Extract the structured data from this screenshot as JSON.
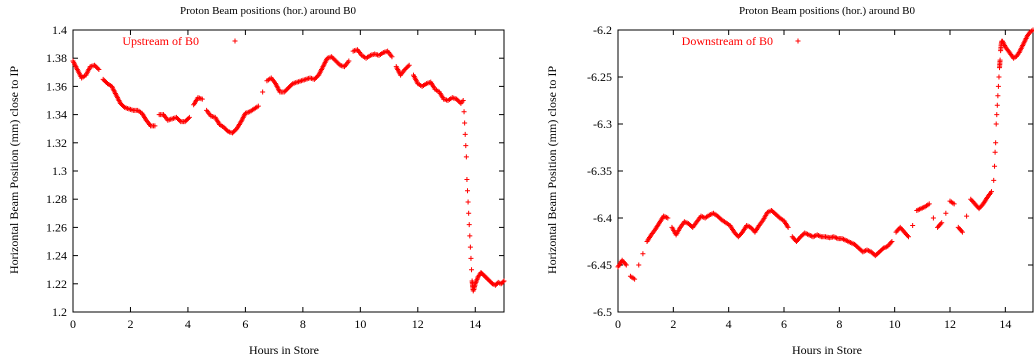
{
  "chart_data": [
    {
      "type": "scatter",
      "title": "Proton Beam positions (hor.) around B0",
      "xlabel": "Hours in Store",
      "ylabel": "Horizontal Beam Position (mm) close to IP",
      "xlim": [
        0,
        15
      ],
      "ylim": [
        1.2,
        1.4
      ],
      "xticks": [
        "0",
        "2",
        "4",
        "6",
        "8",
        "10",
        "12",
        "14"
      ],
      "yticks": [
        "1.2",
        "1.22",
        "1.24",
        "1.26",
        "1.28",
        "1.3",
        "1.32",
        "1.34",
        "1.36",
        "1.38",
        "1.4"
      ],
      "grid": false,
      "legend_position": "top-left",
      "color": "#ff0000",
      "series": [
        {
          "name": "Upstream of B0",
          "x": [
            0,
            0.15,
            0.3,
            0.45,
            0.6,
            0.75,
            0.9,
            1.05,
            1.2,
            1.35,
            1.5,
            1.65,
            1.8,
            1.95,
            2.1,
            2.25,
            2.4,
            2.55,
            2.7,
            2.85,
            3.0,
            3.15,
            3.3,
            3.45,
            3.6,
            3.75,
            3.9,
            4.05,
            4.2,
            4.35,
            4.5,
            4.65,
            4.8,
            4.95,
            5.1,
            5.25,
            5.4,
            5.55,
            5.7,
            5.85,
            6.0,
            6.15,
            6.3,
            6.45,
            6.6,
            6.75,
            6.9,
            7.05,
            7.2,
            7.35,
            7.5,
            7.65,
            7.8,
            7.95,
            8.1,
            8.25,
            8.4,
            8.55,
            8.7,
            8.85,
            9.0,
            9.15,
            9.3,
            9.45,
            9.6,
            9.75,
            9.9,
            10.05,
            10.2,
            10.35,
            10.5,
            10.65,
            10.8,
            10.95,
            11.1,
            11.25,
            11.4,
            11.55,
            11.7,
            11.85,
            12.0,
            12.15,
            12.3,
            12.45,
            12.6,
            12.75,
            12.9,
            13.05,
            13.2,
            13.35,
            13.5,
            13.58,
            13.61,
            13.63,
            13.65,
            13.67,
            13.69,
            13.71,
            13.73,
            13.75,
            13.77,
            13.79,
            13.81,
            13.83,
            13.85,
            13.87,
            13.89,
            13.91,
            13.93,
            13.95,
            14.0,
            14.1,
            14.2,
            14.3,
            14.4,
            14.5,
            14.6,
            14.7,
            14.8,
            14.9,
            15.0
          ],
          "y": [
            1.378,
            1.372,
            1.366,
            1.368,
            1.374,
            1.375,
            1.372,
            1.365,
            1.362,
            1.36,
            1.354,
            1.348,
            1.345,
            1.344,
            1.343,
            1.343,
            1.341,
            1.336,
            1.332,
            1.332,
            1.34,
            1.34,
            1.336,
            1.337,
            1.338,
            1.335,
            1.335,
            1.338,
            1.347,
            1.352,
            1.351,
            1.343,
            1.339,
            1.338,
            1.333,
            1.331,
            1.328,
            1.327,
            1.33,
            1.335,
            1.341,
            1.342,
            1.344,
            1.346,
            1.356,
            1.364,
            1.366,
            1.362,
            1.356,
            1.356,
            1.359,
            1.362,
            1.363,
            1.364,
            1.365,
            1.366,
            1.365,
            1.368,
            1.374,
            1.38,
            1.381,
            1.378,
            1.375,
            1.374,
            1.378,
            1.385,
            1.386,
            1.382,
            1.38,
            1.382,
            1.383,
            1.382,
            1.384,
            1.385,
            1.381,
            1.374,
            1.368,
            1.372,
            1.375,
            1.368,
            1.362,
            1.36,
            1.362,
            1.363,
            1.358,
            1.356,
            1.351,
            1.35,
            1.352,
            1.351,
            1.348,
            1.35,
            1.342,
            1.334,
            1.326,
            1.318,
            1.31,
            1.294,
            1.286,
            1.278,
            1.27,
            1.262,
            1.254,
            1.246,
            1.238,
            1.23,
            1.222,
            1.218,
            1.215,
            1.216,
            1.22,
            1.225,
            1.228,
            1.226,
            1.224,
            1.222,
            1.22,
            1.219,
            1.221,
            1.22,
            1.222
          ]
        }
      ]
    },
    {
      "type": "scatter",
      "title": "Proton Beam positions (hor.) around B0",
      "xlabel": "Hours in Store",
      "ylabel": "Horizontal Beam Position (mm) close to IP",
      "xlim": [
        0,
        15
      ],
      "ylim": [
        -6.5,
        -6.2
      ],
      "xticks": [
        "0",
        "2",
        "4",
        "6",
        "8",
        "10",
        "12",
        "14"
      ],
      "yticks": [
        "-6.5",
        "-6.45",
        "-6.4",
        "-6.35",
        "-6.3",
        "-6.25",
        "-6.2"
      ],
      "grid": false,
      "legend_position": "top-left",
      "color": "#ff0000",
      "series": [
        {
          "name": "Downstream of B0",
          "x": [
            0,
            0.15,
            0.3,
            0.45,
            0.6,
            0.75,
            0.9,
            1.05,
            1.2,
            1.35,
            1.5,
            1.65,
            1.8,
            1.95,
            2.1,
            2.25,
            2.4,
            2.55,
            2.7,
            2.85,
            3.0,
            3.15,
            3.3,
            3.45,
            3.6,
            3.75,
            3.9,
            4.05,
            4.2,
            4.35,
            4.5,
            4.65,
            4.8,
            4.95,
            5.1,
            5.25,
            5.4,
            5.55,
            5.7,
            5.85,
            6.0,
            6.15,
            6.3,
            6.45,
            6.6,
            6.75,
            6.9,
            7.05,
            7.2,
            7.35,
            7.5,
            7.65,
            7.8,
            7.95,
            8.1,
            8.25,
            8.4,
            8.55,
            8.7,
            8.85,
            9.0,
            9.15,
            9.3,
            9.45,
            9.6,
            9.75,
            9.9,
            10.05,
            10.2,
            10.35,
            10.5,
            10.65,
            10.8,
            10.95,
            11.1,
            11.25,
            11.4,
            11.55,
            11.7,
            11.85,
            12.0,
            12.15,
            12.3,
            12.45,
            12.6,
            12.75,
            12.9,
            13.05,
            13.2,
            13.35,
            13.5,
            13.58,
            13.61,
            13.63,
            13.65,
            13.67,
            13.69,
            13.71,
            13.73,
            13.75,
            13.77,
            13.79,
            13.81,
            13.83,
            13.85,
            13.87,
            13.9,
            14.0,
            14.1,
            14.2,
            14.3,
            14.4,
            14.5,
            14.6,
            14.7,
            14.8,
            14.9,
            15.0
          ],
          "y": [
            -6.452,
            -6.445,
            -6.45,
            -6.462,
            -6.465,
            -6.45,
            -6.438,
            -6.425,
            -6.418,
            -6.412,
            -6.405,
            -6.398,
            -6.4,
            -6.41,
            -6.418,
            -6.41,
            -6.404,
            -6.406,
            -6.41,
            -6.404,
            -6.398,
            -6.4,
            -6.397,
            -6.395,
            -6.398,
            -6.402,
            -6.405,
            -6.408,
            -6.415,
            -6.42,
            -6.415,
            -6.408,
            -6.41,
            -6.415,
            -6.408,
            -6.402,
            -6.394,
            -6.392,
            -6.396,
            -6.4,
            -6.403,
            -6.41,
            -6.42,
            -6.425,
            -6.42,
            -6.416,
            -6.418,
            -6.42,
            -6.418,
            -6.42,
            -6.42,
            -6.421,
            -6.42,
            -6.422,
            -6.422,
            -6.424,
            -6.426,
            -6.428,
            -6.432,
            -6.436,
            -6.434,
            -6.436,
            -6.44,
            -6.436,
            -6.432,
            -6.43,
            -6.425,
            -6.415,
            -6.41,
            -6.415,
            -6.42,
            -6.408,
            -6.392,
            -6.39,
            -6.388,
            -6.385,
            -6.4,
            -6.41,
            -6.405,
            -6.395,
            -6.382,
            -6.385,
            -6.41,
            -6.415,
            -6.398,
            -6.38,
            -6.385,
            -6.39,
            -6.385,
            -6.378,
            -6.372,
            -6.36,
            -6.345,
            -6.33,
            -6.32,
            -6.3,
            -6.29,
            -6.28,
            -6.27,
            -6.26,
            -6.25,
            -6.24,
            -6.232,
            -6.222,
            -6.215,
            -6.212,
            -6.212,
            -6.218,
            -6.222,
            -6.226,
            -6.23,
            -6.228,
            -6.224,
            -6.218,
            -6.212,
            -6.206,
            -6.202,
            -6.2
          ]
        }
      ]
    }
  ]
}
